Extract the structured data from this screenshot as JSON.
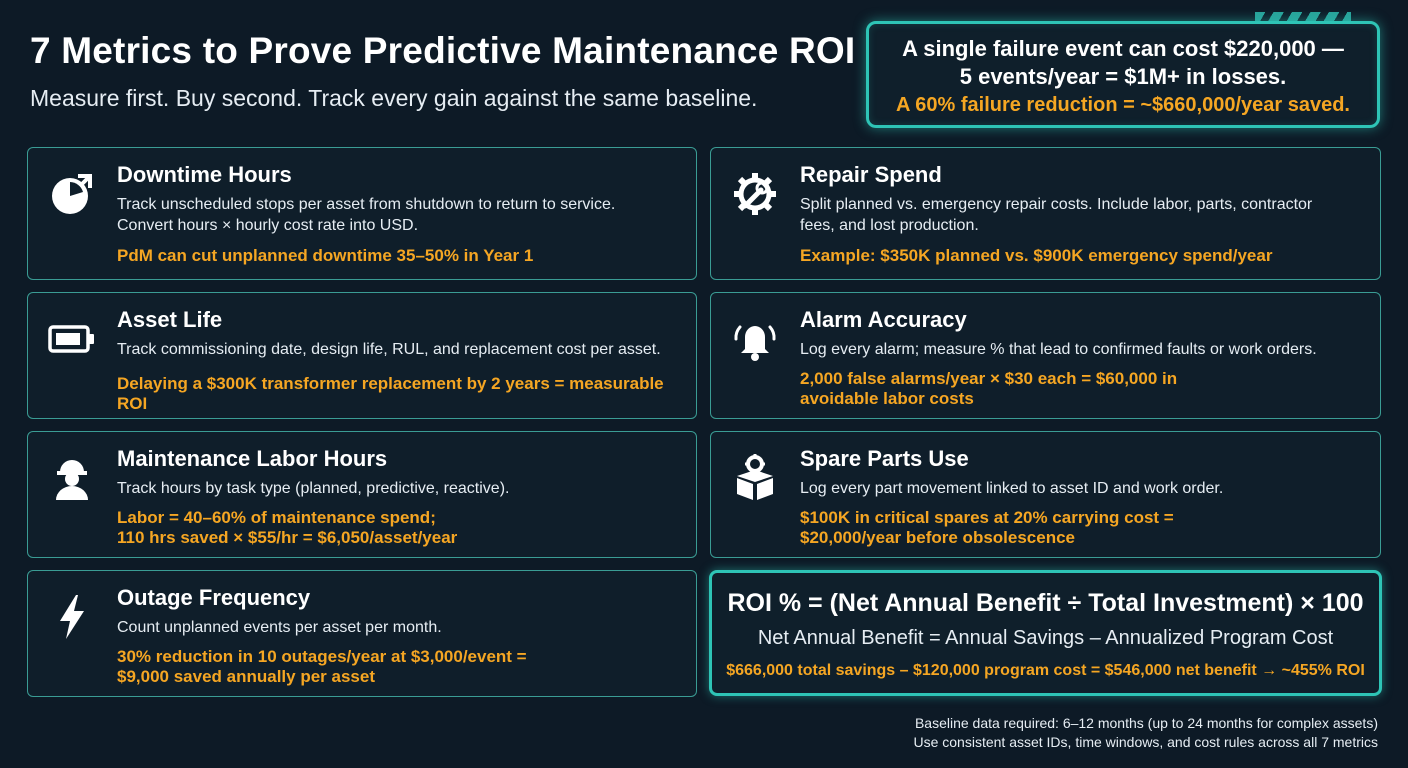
{
  "header": {
    "title": "7 Metrics to Prove Predictive Maintenance ROI",
    "subtitle": "Measure first. Buy second. Track every gain against the same baseline."
  },
  "callout": {
    "line1": "A single failure event can cost $220,000 —",
    "line2": "5 events/year = $1M+ in losses.",
    "line3": "A 60% failure reduction = ~$660,000/year saved."
  },
  "metrics": [
    {
      "icon": "clock-icon",
      "name": "Downtime Hours",
      "desc": "Track unscheduled stops per asset from shutdown to return to service. Convert hours × hourly cost rate into USD.",
      "stat": "PdM can cut unplanned downtime 35–50% in Year 1"
    },
    {
      "icon": "gear-wrench-icon",
      "name": "Repair Spend",
      "desc": "Split planned vs. emergency repair costs. Include labor, parts, contractor fees, and lost production.",
      "stat": "Example: $350K planned vs. $900K emergency spend/year"
    },
    {
      "icon": "battery-icon",
      "name": "Asset Life",
      "desc": "Track commissioning date, design life, RUL, and replacement cost per asset.",
      "stat": "Delaying a $300K transformer replacement by 2 years = measurable ROI"
    },
    {
      "icon": "bell-alarm-icon",
      "name": "Alarm Accuracy",
      "desc": "Log every alarm; measure % that lead to confirmed faults or work orders.",
      "stat": "2,000 false alarms/year × $30 each = $60,000 in avoidable labor costs"
    },
    {
      "icon": "worker-icon",
      "name": "Maintenance Labor Hours",
      "desc": "Track hours by task type (planned, predictive, reactive).",
      "stat_line1": "Labor = 40–60% of maintenance spend;",
      "stat_line2": "110 hrs saved × $55/hr = $6,050/asset/year"
    },
    {
      "icon": "box-gear-icon",
      "name": "Spare Parts Use",
      "desc": "Log every part movement linked to asset ID and work order.",
      "stat_line1": "$100K in critical spares at 20% carrying cost =",
      "stat_line2": "$20,000/year before obsolescence"
    },
    {
      "icon": "lightning-icon",
      "name": "Outage Frequency",
      "desc": "Count unplanned events per asset per month.",
      "stat_line1": "30% reduction in 10 outages/year at $3,000/event =",
      "stat_line2": "$9,000 saved annually per asset"
    }
  ],
  "roi": {
    "formula": "ROI % = (Net Annual Benefit ÷ Total Investment) × 100",
    "definition": "Net Annual Benefit = Annual Savings – Annualized Program Cost",
    "example": "$666,000 total savings – $120,000 program cost = $546,000 net benefit → ~455% ROI"
  },
  "footer": {
    "line1": "Baseline data required: 6–12 months (up to 24 months for complex assets)",
    "line2": "Use consistent asset IDs, time windows, and cost rules across all 7 metrics"
  },
  "colors": {
    "background": "#0d1a26",
    "accent_teal": "#2ec4b6",
    "highlight_orange": "#f5a623",
    "card_border": "#3a9c94"
  }
}
